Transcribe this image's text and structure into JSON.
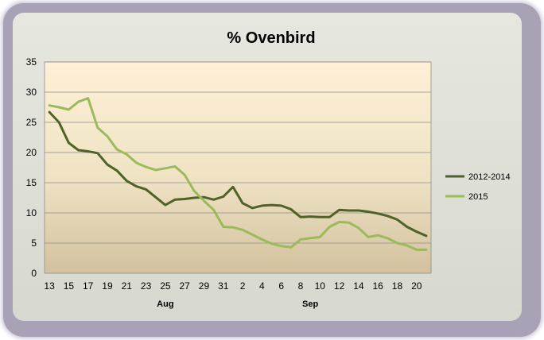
{
  "chart_data": {
    "type": "line",
    "title": "% Ovenbird",
    "xlabel": "",
    "ylabel": "",
    "ylim": [
      0,
      35
    ],
    "y_ticks": [
      "0",
      "5",
      "10",
      "15",
      "20",
      "25",
      "30",
      "35"
    ],
    "x_tick_labels": [
      "13",
      "15",
      "17",
      "19",
      "21",
      "23",
      "25",
      "27",
      "29",
      "31",
      "2",
      "4",
      "6",
      "8",
      "10",
      "12",
      "14",
      "16",
      "18",
      "20"
    ],
    "month_labels": [
      "Aug",
      "Sep"
    ],
    "grid": true,
    "legend_position": "right",
    "series": [
      {
        "name": "2012-2014",
        "color": "#4f6228",
        "values": [
          26.7,
          25.0,
          21.6,
          20.4,
          20.2,
          19.9,
          18.0,
          17.0,
          15.3,
          14.4,
          13.9,
          12.6,
          11.3,
          12.2,
          12.3,
          12.5,
          12.6,
          12.2,
          12.7,
          14.3,
          11.6,
          10.8,
          11.2,
          11.3,
          11.2,
          10.6,
          9.3,
          9.4,
          9.3,
          9.3,
          10.5,
          10.4,
          10.4,
          10.2,
          9.9,
          9.5,
          8.9,
          7.7,
          6.9,
          6.2
        ]
      },
      {
        "name": "2015",
        "color": "#9bbb59",
        "values": [
          27.8,
          27.5,
          27.1,
          28.4,
          29.0,
          24.1,
          22.7,
          20.5,
          19.7,
          18.3,
          17.6,
          17.1,
          17.4,
          17.7,
          16.3,
          13.6,
          12.0,
          10.5,
          7.7,
          7.6,
          7.2,
          6.4,
          5.6,
          4.9,
          4.5,
          4.3,
          5.6,
          5.8,
          6.0,
          7.7,
          8.5,
          8.4,
          7.5,
          6.0,
          6.3,
          5.8,
          5.0,
          4.6,
          3.9,
          3.9
        ]
      }
    ]
  }
}
